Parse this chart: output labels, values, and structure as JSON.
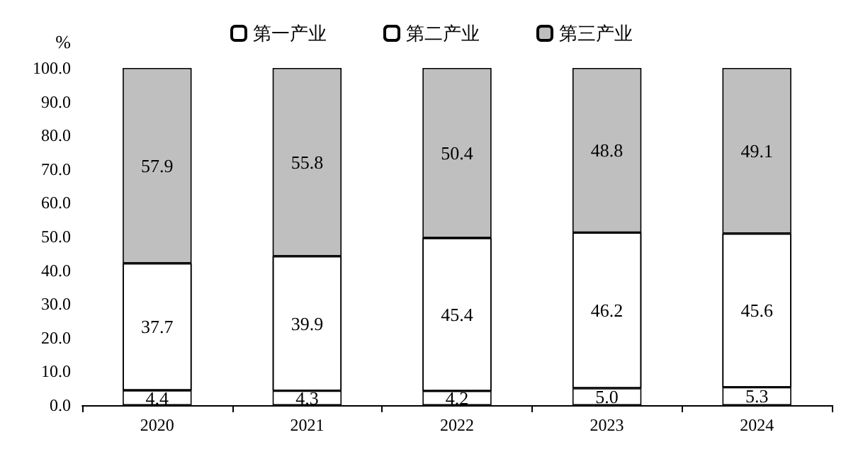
{
  "chart_data": {
    "type": "bar",
    "stacked": true,
    "ylabel": "%",
    "categories": [
      "2020",
      "2021",
      "2022",
      "2023",
      "2024"
    ],
    "series": [
      {
        "name": "第一产业",
        "color": "#ffffff",
        "values": [
          4.4,
          4.3,
          4.2,
          5.0,
          5.3
        ],
        "value_labels": [
          "4.4",
          "4.3",
          "4.2",
          "5.0",
          "5.3"
        ]
      },
      {
        "name": "第二产业",
        "color": "#ffffff",
        "values": [
          37.7,
          39.9,
          45.4,
          46.2,
          45.6
        ],
        "value_labels": [
          "37.7",
          "39.9",
          "45.4",
          "46.2",
          "45.6"
        ]
      },
      {
        "name": "第三产业",
        "color": "#bfbfbf",
        "values": [
          57.9,
          55.8,
          50.4,
          48.8,
          49.1
        ],
        "value_labels": [
          "57.9",
          "55.8",
          "50.4",
          "48.8",
          "49.1"
        ]
      }
    ],
    "ylim": [
      0,
      100
    ],
    "yticks": [
      {
        "value": 0,
        "label": "0.0"
      },
      {
        "value": 10,
        "label": "10.0"
      },
      {
        "value": 20,
        "label": "20.0"
      },
      {
        "value": 30,
        "label": "30.0"
      },
      {
        "value": 40,
        "label": "40.0"
      },
      {
        "value": 50,
        "label": "50.0"
      },
      {
        "value": 60,
        "label": "60.0"
      },
      {
        "value": 70,
        "label": "70.0"
      },
      {
        "value": 80,
        "label": "80.0"
      },
      {
        "value": 90,
        "label": "90.0"
      },
      {
        "value": 100,
        "label": "100.0"
      }
    ],
    "grid": false,
    "legend": "top"
  }
}
